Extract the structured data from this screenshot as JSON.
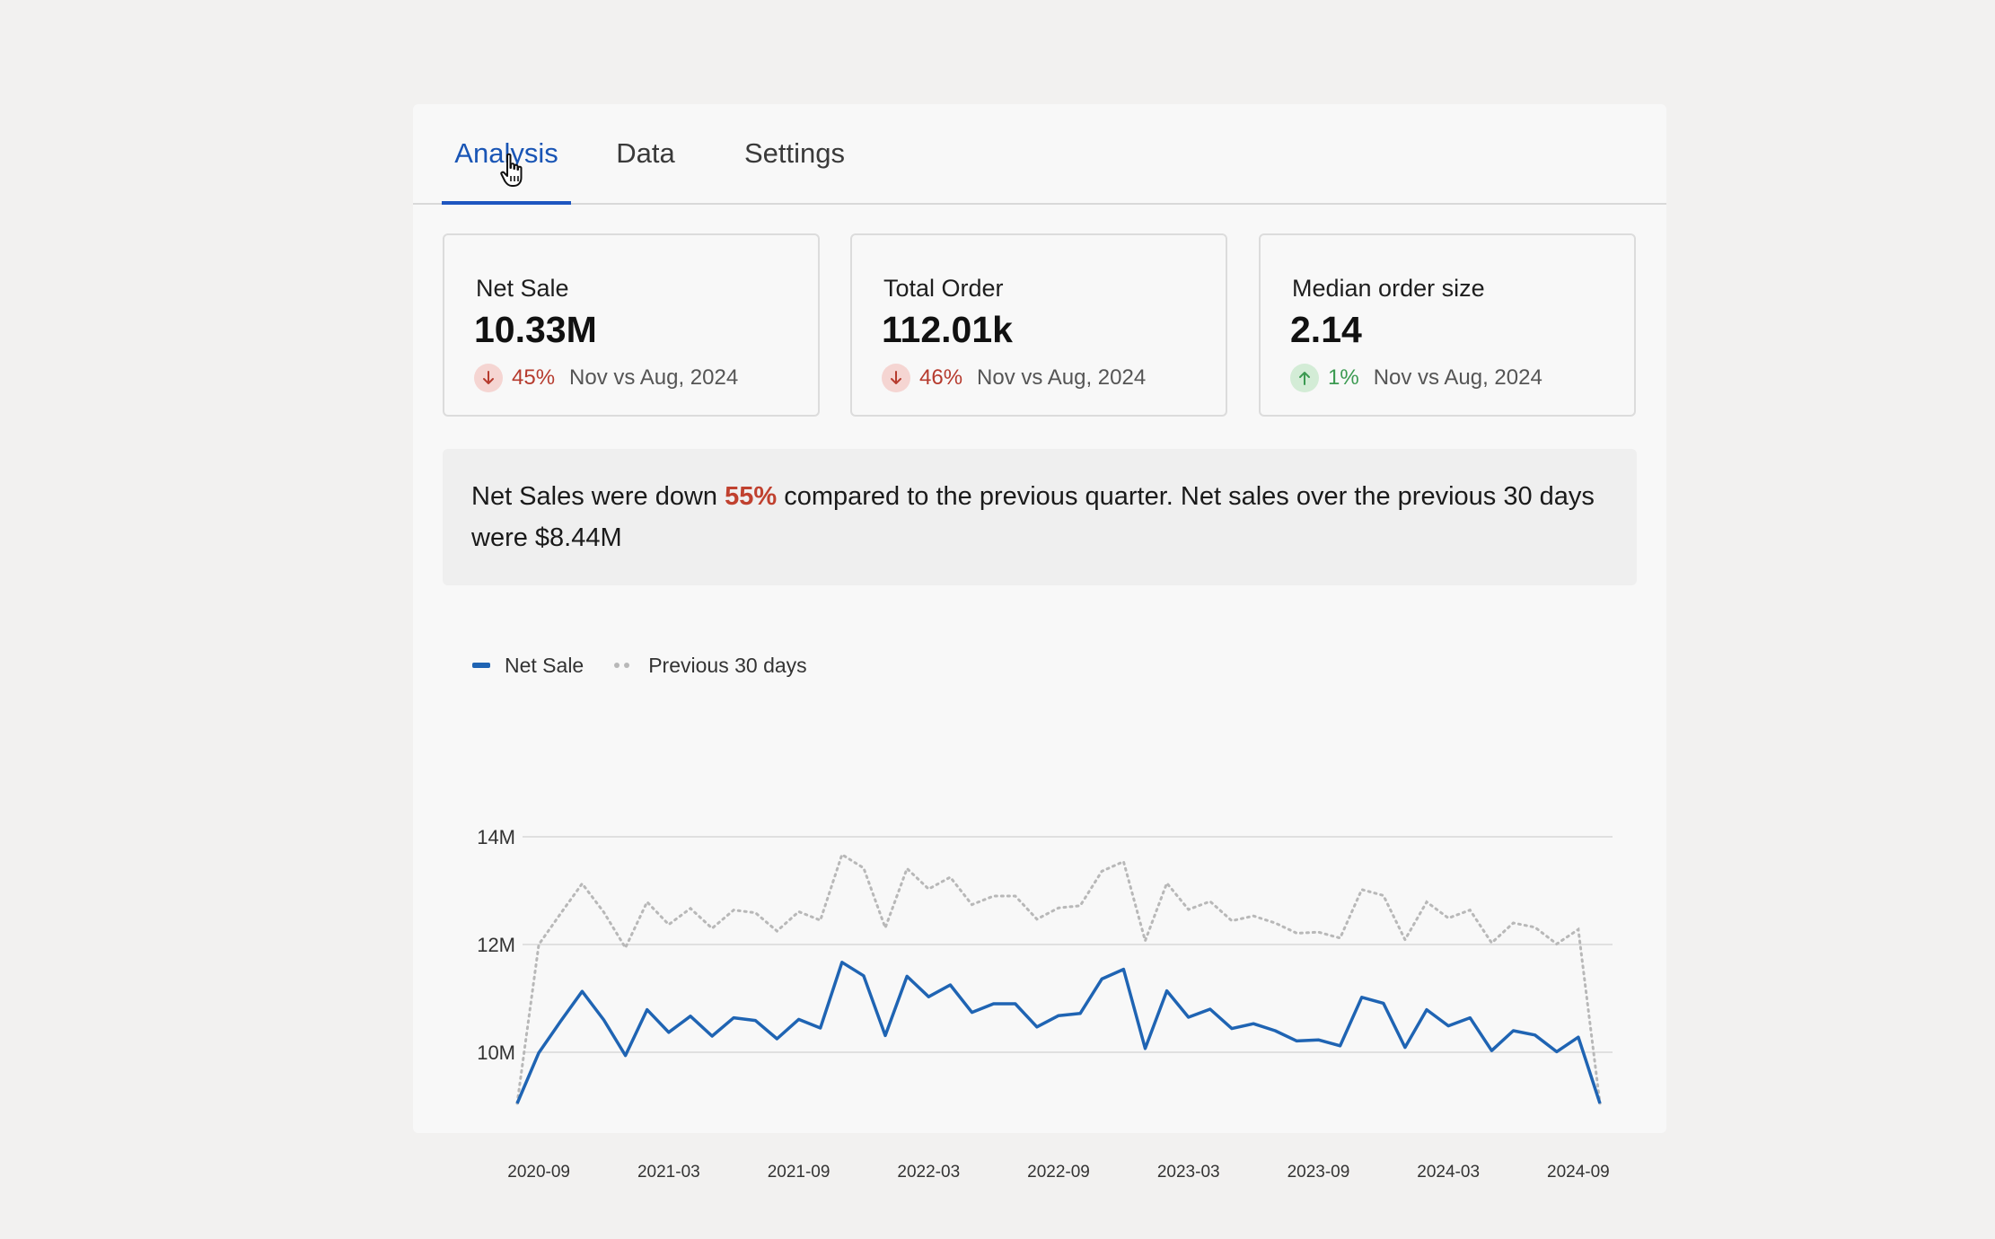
{
  "tabs": [
    {
      "label": "Analysis",
      "active": true
    },
    {
      "label": "Data",
      "active": false
    },
    {
      "label": "Settings",
      "active": false
    }
  ],
  "kpis": [
    {
      "label": "Net Sale",
      "value": "10.33M",
      "direction": "down",
      "change": "45%",
      "period": "Nov vs Aug, 2024"
    },
    {
      "label": "Total Order",
      "value": "112.01k",
      "direction": "down",
      "change": "46%",
      "period": "Nov vs Aug, 2024"
    },
    {
      "label": "Median order size",
      "value": "2.14",
      "direction": "up",
      "change": "1%",
      "period": "Nov vs Aug, 2024"
    }
  ],
  "insight": {
    "prefix": "Net Sales were down ",
    "highlight": "55%",
    "suffix": " compared to the previous quarter. Net sales over the previous  30 days were $8.44M"
  },
  "legend": {
    "net_sale": "Net Sale",
    "previous": "Previous 30 days"
  },
  "colors": {
    "accent": "#1e56c0",
    "net_sale_line": "#1f64b3",
    "previous_line": "#b8b8b8",
    "down": "#b63b2e",
    "up": "#3b9a51",
    "highlight": "#c0412f"
  },
  "chart_data": {
    "type": "line",
    "x_tick_labels": [
      "2020-09",
      "2021-03",
      "2021-09",
      "2022-03",
      "2022-09",
      "2023-03",
      "2023-09",
      "2024-03",
      "2024-09"
    ],
    "y_tick_labels": [
      "14M",
      "12M",
      "10M"
    ],
    "y_ticks": [
      14,
      12,
      10
    ],
    "ylim": [
      9.05,
      14
    ],
    "x_range": [
      -1,
      49
    ],
    "grid": true,
    "legend_position": "top-left",
    "series": [
      {
        "name": "Net Sale",
        "style": "solid",
        "values": [
          9.05,
          9.99,
          10.57,
          11.13,
          10.6,
          9.94,
          10.79,
          10.37,
          10.67,
          10.3,
          10.64,
          10.59,
          10.25,
          10.61,
          10.45,
          11.67,
          11.42,
          10.31,
          11.41,
          11.03,
          11.25,
          10.74,
          10.9,
          10.9,
          10.47,
          10.68,
          10.72,
          11.36,
          11.54,
          10.07,
          11.14,
          10.65,
          10.8,
          10.44,
          10.53,
          10.4,
          10.21,
          10.23,
          10.12,
          11.02,
          10.91,
          10.09,
          10.79,
          10.49,
          10.64,
          10.03,
          10.4,
          10.32,
          10.01,
          10.28,
          9.05
        ]
      },
      {
        "name": "Previous 30 days",
        "style": "dotted",
        "values": [
          9.05,
          12.0,
          12.57,
          13.13,
          12.6,
          11.94,
          12.79,
          12.37,
          12.67,
          12.3,
          12.64,
          12.59,
          12.25,
          12.61,
          12.45,
          13.67,
          13.42,
          12.31,
          13.41,
          13.03,
          13.25,
          12.74,
          12.9,
          12.9,
          12.47,
          12.68,
          12.72,
          13.36,
          13.54,
          12.07,
          13.14,
          12.65,
          12.8,
          12.44,
          12.53,
          12.4,
          12.21,
          12.23,
          12.12,
          13.02,
          12.91,
          12.09,
          12.79,
          12.49,
          12.64,
          12.03,
          12.4,
          12.32,
          12.01,
          12.28,
          9.05
        ]
      }
    ]
  }
}
